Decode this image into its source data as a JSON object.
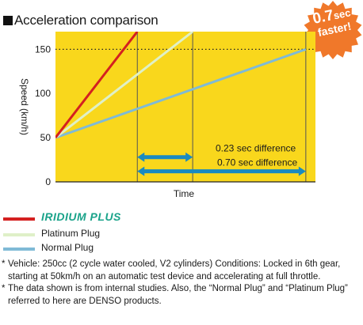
{
  "title": "Acceleration comparison",
  "badge": {
    "value": "0.7",
    "unit": "sec",
    "text": "faster!",
    "color": "#f0782a"
  },
  "chart_data": {
    "type": "line",
    "xlabel": "Time",
    "ylabel": "Speed (km/h)",
    "ylim": [
      0,
      170
    ],
    "yticks": [
      0,
      50,
      100,
      150
    ],
    "background": "#f9d71c",
    "grid": "vertical lines",
    "reference_line": {
      "y": 150,
      "style": "dotted"
    },
    "series": [
      {
        "name": "IRIDIUM PLUS",
        "color": "#d42020",
        "points": [
          [
            0,
            50
          ],
          [
            0.34,
            170
          ]
        ]
      },
      {
        "name": "Platinum Plug",
        "color": "#dff0c8",
        "points": [
          [
            0,
            50
          ],
          [
            0.57,
            170
          ]
        ]
      },
      {
        "name": "Normal Plug",
        "color": "#7fbad6",
        "points": [
          [
            0,
            50
          ],
          [
            1.04,
            150
          ]
        ]
      }
    ],
    "xrange": [
      0,
      1.08
    ],
    "vlines": [
      0.34,
      0.57,
      1.04
    ],
    "annotations": [
      {
        "label": "0.23 sec difference",
        "from": 0.34,
        "to": 0.57,
        "y": 28
      },
      {
        "label": "0.70 sec difference",
        "from": 0.34,
        "to": 1.04,
        "y": 12
      }
    ],
    "arrow_color": "#1a8ac0"
  },
  "legend": [
    {
      "label": "IRIDIUM PLUS",
      "color": "#d42020"
    },
    {
      "label": "Platinum Plug",
      "color": "#dff0c8"
    },
    {
      "label": "Normal Plug",
      "color": "#7fbad6"
    }
  ],
  "notes": [
    "Vehicle: 250cc (2 cycle water cooled, V2 cylinders) Conditions: Locked in 6th gear, starting at 50km/h on an automatic test device and accelerating at full throttle.",
    "The data shown is from internal studies. Also, the “Normal Plug” and “Platinum Plug” referred to here are DENSO products."
  ],
  "note_marker": "*"
}
